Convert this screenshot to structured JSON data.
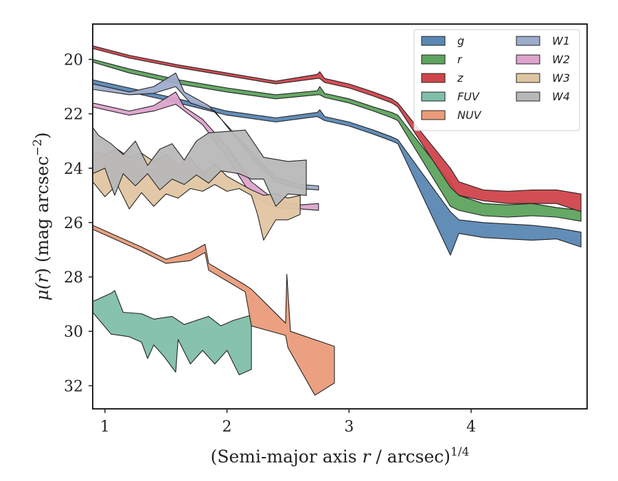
{
  "chart_data": {
    "type": "area",
    "xlabel_main": "(Semi-major axis ",
    "xlabel_var": "r",
    "xlabel_rest": " / arcsec)",
    "xlabel_sup": "1/4",
    "ylabel_main": "μ(",
    "ylabel_var": "r",
    "ylabel_rest": ") (mag arcsec",
    "ylabel_sup": "−2",
    "ylabel_end": ")",
    "xlim": [
      0.9,
      4.95
    ],
    "ylim": [
      32.85,
      18.7
    ],
    "x_ticks": [
      {
        "v": 1,
        "label": "1"
      },
      {
        "v": 2,
        "label": "2"
      },
      {
        "v": 3,
        "label": "3"
      },
      {
        "v": 4,
        "label": "4"
      }
    ],
    "y_ticks": [
      {
        "v": 20,
        "label": "20"
      },
      {
        "v": 22,
        "label": "22"
      },
      {
        "v": 24,
        "label": "24"
      },
      {
        "v": 26,
        "label": "26"
      },
      {
        "v": 28,
        "label": "28"
      },
      {
        "v": 30,
        "label": "30"
      },
      {
        "v": 32,
        "label": "32"
      }
    ],
    "legend": {
      "position": "top-right",
      "columns": 2
    },
    "series": [
      {
        "name": "g",
        "color": "#5a87b3",
        "upper": [
          [
            0.9,
            20.75
          ],
          [
            1.2,
            21.05
          ],
          [
            1.6,
            21.45
          ],
          [
            2.0,
            21.9
          ],
          [
            2.4,
            22.15
          ],
          [
            2.74,
            21.95
          ],
          [
            2.76,
            21.85
          ],
          [
            2.8,
            22.1
          ],
          [
            3.0,
            22.3
          ],
          [
            3.2,
            22.6
          ],
          [
            3.35,
            22.85
          ],
          [
            3.4,
            22.95
          ],
          [
            3.65,
            24.5
          ],
          [
            3.83,
            25.6
          ],
          [
            3.9,
            25.9
          ],
          [
            4.1,
            26.0
          ],
          [
            4.3,
            26.05
          ],
          [
            4.5,
            26.1
          ],
          [
            4.7,
            26.2
          ],
          [
            4.9,
            26.35
          ]
        ],
        "lower": [
          [
            4.9,
            26.9
          ],
          [
            4.7,
            26.6
          ],
          [
            4.5,
            26.65
          ],
          [
            4.3,
            26.6
          ],
          [
            4.1,
            26.55
          ],
          [
            3.9,
            26.4
          ],
          [
            3.83,
            27.2
          ],
          [
            3.4,
            23.1
          ],
          [
            3.35,
            23.0
          ],
          [
            3.2,
            22.75
          ],
          [
            3.0,
            22.45
          ],
          [
            2.8,
            22.25
          ],
          [
            2.76,
            22.15
          ],
          [
            2.74,
            22.1
          ],
          [
            2.4,
            22.3
          ],
          [
            2.0,
            22.05
          ],
          [
            1.6,
            21.6
          ],
          [
            1.2,
            21.2
          ],
          [
            0.9,
            20.9
          ]
        ]
      },
      {
        "name": "r",
        "color": "#5ea35e",
        "upper": [
          [
            0.9,
            20.0
          ],
          [
            1.2,
            20.35
          ],
          [
            1.6,
            20.75
          ],
          [
            2.0,
            21.05
          ],
          [
            2.4,
            21.3
          ],
          [
            2.74,
            21.15
          ],
          [
            2.76,
            21.0
          ],
          [
            2.8,
            21.25
          ],
          [
            3.0,
            21.45
          ],
          [
            3.2,
            21.75
          ],
          [
            3.35,
            21.95
          ],
          [
            3.4,
            22.05
          ],
          [
            3.65,
            23.5
          ],
          [
            3.83,
            24.5
          ],
          [
            3.9,
            25.0
          ],
          [
            4.1,
            25.3
          ],
          [
            4.3,
            25.35
          ],
          [
            4.5,
            25.3
          ],
          [
            4.7,
            25.45
          ],
          [
            4.9,
            25.55
          ]
        ],
        "lower": [
          [
            4.9,
            25.95
          ],
          [
            4.7,
            25.8
          ],
          [
            4.5,
            25.75
          ],
          [
            4.3,
            25.8
          ],
          [
            4.1,
            25.75
          ],
          [
            3.9,
            25.55
          ],
          [
            3.83,
            25.4
          ],
          [
            3.4,
            22.25
          ],
          [
            3.35,
            22.15
          ],
          [
            3.2,
            21.9
          ],
          [
            3.0,
            21.6
          ],
          [
            2.8,
            21.4
          ],
          [
            2.76,
            21.3
          ],
          [
            2.74,
            21.3
          ],
          [
            2.4,
            21.45
          ],
          [
            2.0,
            21.2
          ],
          [
            1.6,
            20.9
          ],
          [
            1.2,
            20.5
          ],
          [
            0.9,
            20.1
          ]
        ]
      },
      {
        "name": "z",
        "color": "#d0454b",
        "upper": [
          [
            0.9,
            19.5
          ],
          [
            1.2,
            19.85
          ],
          [
            1.6,
            20.2
          ],
          [
            2.0,
            20.5
          ],
          [
            2.4,
            20.8
          ],
          [
            2.74,
            20.55
          ],
          [
            2.76,
            20.45
          ],
          [
            2.8,
            20.7
          ],
          [
            3.0,
            20.9
          ],
          [
            3.2,
            21.2
          ],
          [
            3.35,
            21.45
          ],
          [
            3.4,
            21.6
          ],
          [
            3.65,
            23.0
          ],
          [
            3.83,
            24.0
          ],
          [
            3.9,
            24.5
          ],
          [
            4.1,
            24.8
          ],
          [
            4.3,
            24.85
          ],
          [
            4.5,
            24.8
          ],
          [
            4.7,
            24.8
          ],
          [
            4.9,
            24.95
          ]
        ],
        "lower": [
          [
            4.9,
            25.6
          ],
          [
            4.7,
            25.3
          ],
          [
            4.5,
            25.3
          ],
          [
            4.3,
            25.3
          ],
          [
            4.1,
            25.2
          ],
          [
            3.9,
            25.0
          ],
          [
            3.83,
            24.7
          ],
          [
            3.4,
            21.75
          ],
          [
            3.35,
            21.6
          ],
          [
            3.2,
            21.35
          ],
          [
            3.0,
            21.05
          ],
          [
            2.8,
            20.85
          ],
          [
            2.76,
            20.7
          ],
          [
            2.74,
            20.7
          ],
          [
            2.4,
            20.9
          ],
          [
            2.0,
            20.6
          ],
          [
            1.6,
            20.3
          ],
          [
            1.2,
            19.95
          ],
          [
            0.9,
            19.6
          ]
        ]
      },
      {
        "name": "FUV",
        "color": "#7fbfa9",
        "upper": [
          [
            0.9,
            28.9
          ],
          [
            1.05,
            28.6
          ],
          [
            1.08,
            28.5
          ],
          [
            1.15,
            29.3
          ],
          [
            1.3,
            29.35
          ],
          [
            1.4,
            29.55
          ],
          [
            1.55,
            29.45
          ],
          [
            1.65,
            29.75
          ],
          [
            1.78,
            29.55
          ],
          [
            1.85,
            29.45
          ],
          [
            1.95,
            29.8
          ],
          [
            2.05,
            29.6
          ],
          [
            2.2,
            29.4
          ]
        ],
        "lower": [
          [
            2.2,
            31.4
          ],
          [
            2.1,
            31.6
          ],
          [
            2.0,
            30.7
          ],
          [
            1.9,
            31.2
          ],
          [
            1.8,
            30.7
          ],
          [
            1.7,
            31.2
          ],
          [
            1.6,
            30.3
          ],
          [
            1.58,
            31.5
          ],
          [
            1.48,
            30.9
          ],
          [
            1.4,
            30.5
          ],
          [
            1.35,
            31.0
          ],
          [
            1.3,
            30.4
          ],
          [
            1.2,
            30.2
          ],
          [
            1.05,
            30.1
          ],
          [
            0.9,
            29.3
          ]
        ]
      },
      {
        "name": "NUV",
        "color": "#ea9c7a",
        "upper": [
          [
            0.9,
            26.1
          ],
          [
            1.3,
            26.9
          ],
          [
            1.5,
            27.35
          ],
          [
            1.7,
            27.1
          ],
          [
            1.82,
            26.8
          ],
          [
            1.85,
            27.5
          ],
          [
            2.0,
            27.9
          ],
          [
            2.15,
            28.3
          ],
          [
            2.2,
            28.45
          ],
          [
            2.48,
            29.7
          ],
          [
            2.49,
            27.9
          ],
          [
            2.52,
            30.0
          ],
          [
            2.88,
            30.55
          ]
        ],
        "lower": [
          [
            2.88,
            31.9
          ],
          [
            2.72,
            32.35
          ],
          [
            2.5,
            30.6
          ],
          [
            2.48,
            30.15
          ],
          [
            2.2,
            29.8
          ],
          [
            2.15,
            28.55
          ],
          [
            2.0,
            28.15
          ],
          [
            1.85,
            27.75
          ],
          [
            1.82,
            27.1
          ],
          [
            1.7,
            27.4
          ],
          [
            1.5,
            27.5
          ],
          [
            1.3,
            27.05
          ],
          [
            0.9,
            26.25
          ]
        ]
      },
      {
        "name": "W1",
        "color": "#9eaccb",
        "upper": [
          [
            0.9,
            20.9
          ],
          [
            1.2,
            21.2
          ],
          [
            1.4,
            21.0
          ],
          [
            1.58,
            20.5
          ],
          [
            1.65,
            21.2
          ],
          [
            1.85,
            21.7
          ],
          [
            2.2,
            23.4
          ],
          [
            2.4,
            24.35
          ],
          [
            2.6,
            24.6
          ],
          [
            2.75,
            24.65
          ]
        ],
        "lower": [
          [
            2.75,
            24.8
          ],
          [
            2.6,
            24.75
          ],
          [
            2.4,
            24.5
          ],
          [
            2.2,
            23.6
          ],
          [
            1.9,
            21.9
          ],
          [
            1.7,
            21.6
          ],
          [
            1.58,
            21.0
          ],
          [
            1.4,
            21.25
          ],
          [
            1.2,
            21.3
          ],
          [
            0.9,
            21.1
          ]
        ]
      },
      {
        "name": "W2",
        "color": "#dda3cc",
        "upper": [
          [
            0.9,
            21.6
          ],
          [
            1.2,
            21.9
          ],
          [
            1.4,
            21.7
          ],
          [
            1.58,
            21.2
          ],
          [
            1.65,
            21.75
          ],
          [
            1.8,
            22.2
          ],
          [
            2.0,
            23.2
          ],
          [
            2.2,
            24.5
          ],
          [
            2.4,
            25.2
          ],
          [
            2.6,
            25.35
          ],
          [
            2.75,
            25.3
          ]
        ],
        "lower": [
          [
            2.75,
            25.55
          ],
          [
            2.6,
            25.5
          ],
          [
            2.4,
            25.45
          ],
          [
            2.2,
            25.0
          ],
          [
            2.0,
            23.6
          ],
          [
            1.8,
            22.4
          ],
          [
            1.58,
            21.65
          ],
          [
            1.4,
            21.9
          ],
          [
            1.2,
            22.05
          ],
          [
            0.9,
            21.75
          ]
        ]
      },
      {
        "name": "W3",
        "color": "#e0c5a2",
        "upper": [
          [
            0.9,
            23.4
          ],
          [
            1.0,
            23.5
          ],
          [
            1.1,
            23.3
          ],
          [
            1.2,
            23.6
          ],
          [
            1.3,
            23.45
          ],
          [
            1.4,
            23.75
          ],
          [
            1.5,
            23.5
          ],
          [
            1.6,
            23.9
          ],
          [
            1.7,
            23.6
          ],
          [
            1.8,
            24.2
          ],
          [
            1.9,
            23.85
          ],
          [
            2.0,
            24.3
          ],
          [
            2.1,
            24.55
          ],
          [
            2.2,
            24.8
          ],
          [
            2.3,
            25.0
          ],
          [
            2.4,
            24.95
          ],
          [
            2.5,
            25.1
          ],
          [
            2.6,
            25.0
          ]
        ],
        "lower": [
          [
            2.6,
            25.7
          ],
          [
            2.5,
            25.9
          ],
          [
            2.4,
            25.9
          ],
          [
            2.3,
            26.65
          ],
          [
            2.25,
            25.7
          ],
          [
            2.2,
            25.0
          ],
          [
            2.1,
            24.75
          ],
          [
            2.0,
            24.85
          ],
          [
            1.9,
            24.6
          ],
          [
            1.8,
            24.85
          ],
          [
            1.7,
            24.75
          ],
          [
            1.6,
            25.1
          ],
          [
            1.5,
            24.95
          ],
          [
            1.4,
            25.4
          ],
          [
            1.3,
            24.9
          ],
          [
            1.2,
            25.5
          ],
          [
            1.1,
            24.6
          ],
          [
            1.0,
            25.05
          ],
          [
            0.9,
            24.5
          ]
        ]
      },
      {
        "name": "W4",
        "color": "#b8b8b8",
        "upper": [
          [
            0.9,
            22.5
          ],
          [
            0.95,
            22.8
          ],
          [
            1.05,
            23.1
          ],
          [
            1.15,
            23.5
          ],
          [
            1.25,
            23.0
          ],
          [
            1.35,
            23.9
          ],
          [
            1.45,
            23.3
          ],
          [
            1.55,
            23.1
          ],
          [
            1.65,
            23.7
          ],
          [
            1.75,
            23.0
          ],
          [
            1.85,
            22.7
          ],
          [
            2.15,
            22.6
          ],
          [
            2.3,
            23.6
          ],
          [
            2.5,
            23.75
          ],
          [
            2.65,
            23.7
          ]
        ],
        "lower": [
          [
            2.65,
            25.0
          ],
          [
            2.5,
            24.95
          ],
          [
            2.4,
            25.4
          ],
          [
            2.3,
            24.4
          ],
          [
            2.2,
            24.4
          ],
          [
            2.1,
            24.2
          ],
          [
            1.95,
            24.1
          ],
          [
            1.85,
            24.55
          ],
          [
            1.75,
            24.25
          ],
          [
            1.65,
            24.6
          ],
          [
            1.55,
            24.4
          ],
          [
            1.45,
            24.8
          ],
          [
            1.35,
            24.2
          ],
          [
            1.25,
            24.65
          ],
          [
            1.15,
            24.2
          ],
          [
            1.08,
            25.0
          ],
          [
            1.0,
            24.0
          ],
          [
            0.9,
            24.2
          ]
        ]
      }
    ]
  }
}
